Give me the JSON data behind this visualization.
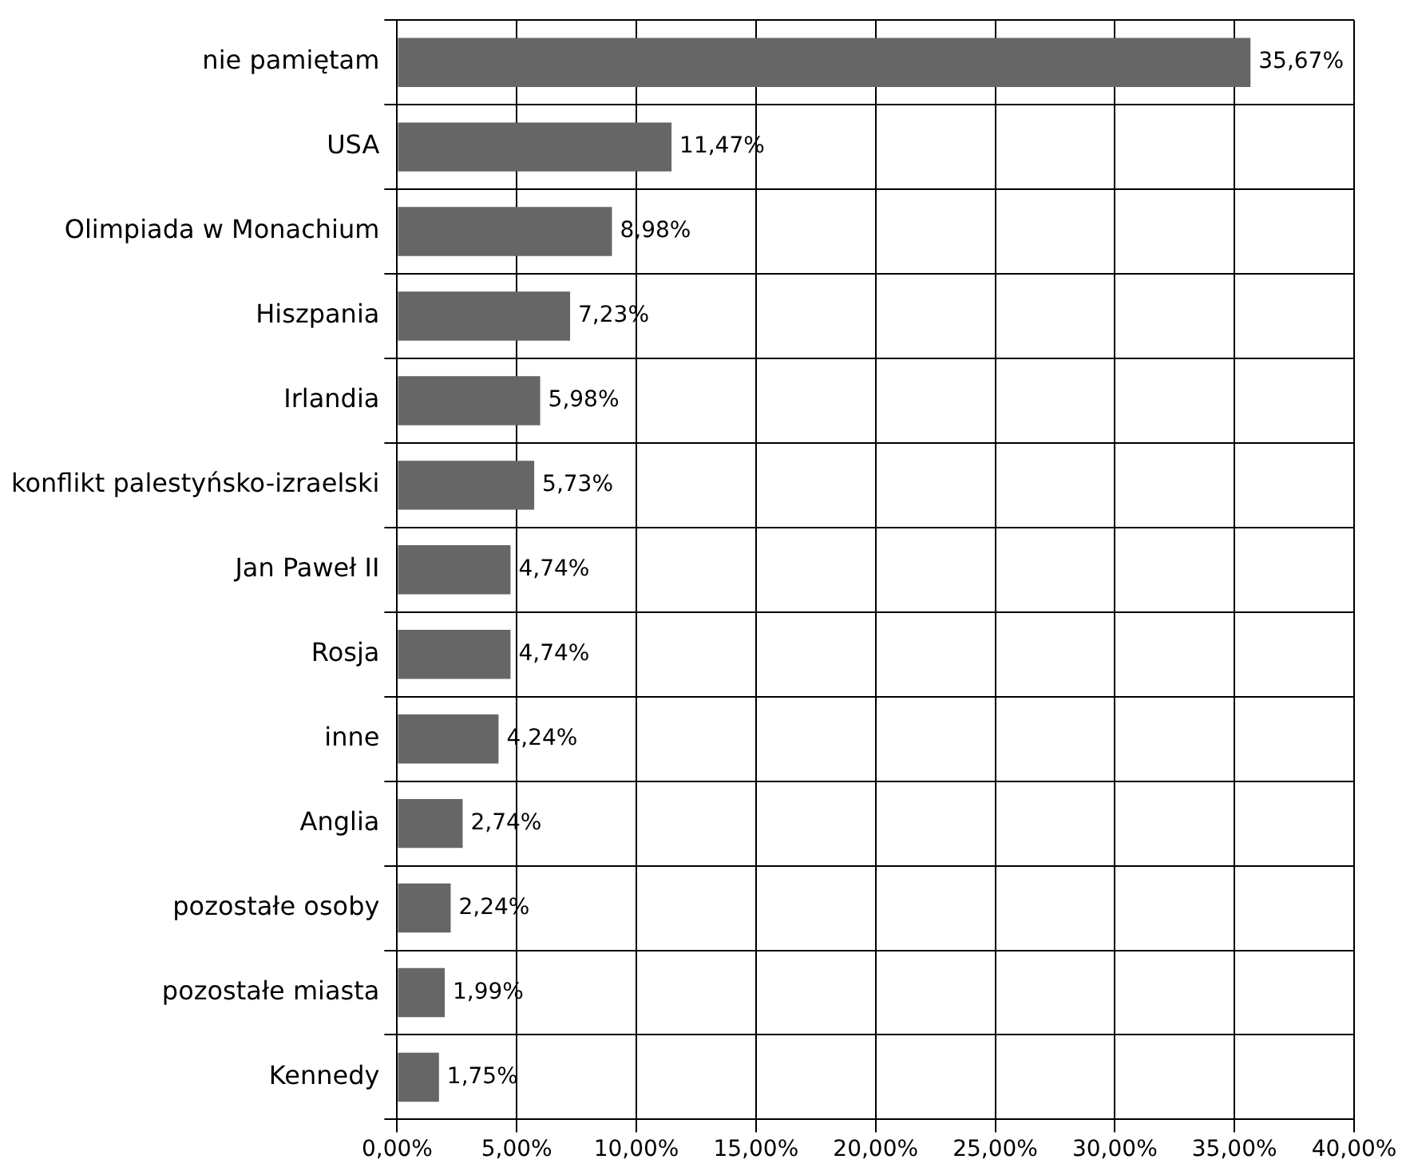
{
  "chart_data": {
    "type": "bar",
    "orientation": "horizontal",
    "categories": [
      "nie pamiętam",
      "USA",
      "Olimpiada w Monachium",
      "Hiszpania",
      "Irlandia",
      "konflikt palestyńsko-izraelski",
      "Jan Paweł II",
      "Rosja",
      "inne",
      "Anglia",
      "pozostałe osoby",
      "pozostałe miasta",
      "Kennedy"
    ],
    "values": [
      35.67,
      11.47,
      8.98,
      7.23,
      5.98,
      5.73,
      4.74,
      4.74,
      4.24,
      2.74,
      2.24,
      1.99,
      1.75
    ],
    "value_labels": [
      "35,67%",
      "11,47%",
      "8,98%",
      "7,23%",
      "5,98%",
      "5,73%",
      "4,74%",
      "4,74%",
      "4,24%",
      "2,74%",
      "2,24%",
      "1,99%",
      "1,75%"
    ],
    "color": "#666666",
    "xlim": [
      0,
      40
    ],
    "xticks": [
      {
        "value": 0,
        "label": "0,00%"
      },
      {
        "value": 5,
        "label": "5,00%"
      },
      {
        "value": 10,
        "label": "10,00%"
      },
      {
        "value": 15,
        "label": "15,00%"
      },
      {
        "value": 20,
        "label": "20,00%"
      },
      {
        "value": 25,
        "label": "25,00%"
      },
      {
        "value": 30,
        "label": "30,00%"
      },
      {
        "value": 35,
        "label": "35,00%"
      },
      {
        "value": 40,
        "label": "40,00%"
      }
    ],
    "grid": true
  }
}
